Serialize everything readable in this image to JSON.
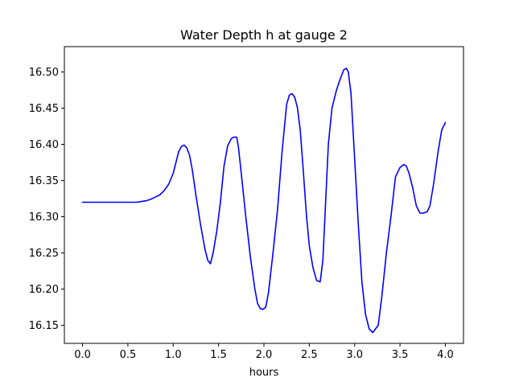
{
  "chart_data": {
    "type": "line",
    "title": "Water Depth h at gauge 2",
    "xlabel": "hours",
    "ylabel": "",
    "xlim": [
      -0.2,
      4.2
    ],
    "ylim": [
      16.125,
      16.535
    ],
    "xticks": [
      0.0,
      0.5,
      1.0,
      1.5,
      2.0,
      2.5,
      3.0,
      3.5,
      4.0
    ],
    "xtick_labels": [
      "0.0",
      "0.5",
      "1.0",
      "1.5",
      "2.0",
      "2.5",
      "3.0",
      "3.5",
      "4.0"
    ],
    "yticks": [
      16.15,
      16.2,
      16.25,
      16.3,
      16.35,
      16.4,
      16.45,
      16.5
    ],
    "ytick_labels": [
      "16.15",
      "16.20",
      "16.25",
      "16.30",
      "16.35",
      "16.40",
      "16.45",
      "16.50"
    ],
    "grid": false,
    "series": [
      {
        "color": "#0000ff",
        "x": [
          0.0,
          0.1,
          0.2,
          0.3,
          0.4,
          0.5,
          0.6,
          0.65,
          0.7,
          0.75,
          0.8,
          0.85,
          0.9,
          0.95,
          1.0,
          1.03,
          1.06,
          1.09,
          1.12,
          1.15,
          1.18,
          1.21,
          1.25,
          1.3,
          1.35,
          1.38,
          1.41,
          1.44,
          1.48,
          1.52,
          1.56,
          1.6,
          1.64,
          1.67,
          1.7,
          1.72,
          1.75,
          1.8,
          1.85,
          1.9,
          1.93,
          1.96,
          1.99,
          2.02,
          2.05,
          2.1,
          2.15,
          2.2,
          2.25,
          2.28,
          2.31,
          2.34,
          2.37,
          2.4,
          2.43,
          2.47,
          2.5,
          2.54,
          2.58,
          2.62,
          2.65,
          2.68,
          2.71,
          2.75,
          2.8,
          2.84,
          2.88,
          2.91,
          2.93,
          2.96,
          3.0,
          3.04,
          3.08,
          3.12,
          3.16,
          3.2,
          3.23,
          3.26,
          3.3,
          3.35,
          3.4,
          3.45,
          3.5,
          3.54,
          3.57,
          3.6,
          3.64,
          3.68,
          3.72,
          3.76,
          3.8,
          3.83,
          3.87,
          3.92,
          3.96,
          4.0
        ],
        "y": [
          16.32,
          16.32,
          16.32,
          16.32,
          16.32,
          16.32,
          16.32,
          16.321,
          16.322,
          16.324,
          16.327,
          16.33,
          16.336,
          16.345,
          16.36,
          16.375,
          16.39,
          16.397,
          16.399,
          16.395,
          16.385,
          16.365,
          16.33,
          16.29,
          16.255,
          16.24,
          16.235,
          16.25,
          16.28,
          16.32,
          16.37,
          16.398,
          16.408,
          16.41,
          16.41,
          16.395,
          16.36,
          16.3,
          16.245,
          16.2,
          16.18,
          16.173,
          16.172,
          16.175,
          16.195,
          16.25,
          16.31,
          16.39,
          16.455,
          16.468,
          16.47,
          16.465,
          16.45,
          16.42,
          16.37,
          16.3,
          16.26,
          16.23,
          16.212,
          16.21,
          16.24,
          16.32,
          16.4,
          16.45,
          16.475,
          16.49,
          16.503,
          16.505,
          16.5,
          16.47,
          16.38,
          16.29,
          16.21,
          16.165,
          16.145,
          16.14,
          16.145,
          16.15,
          16.19,
          16.25,
          16.3,
          16.355,
          16.368,
          16.372,
          16.37,
          16.36,
          16.34,
          16.315,
          16.305,
          16.305,
          16.307,
          16.315,
          16.345,
          16.39,
          16.42,
          16.43
        ]
      }
    ]
  }
}
